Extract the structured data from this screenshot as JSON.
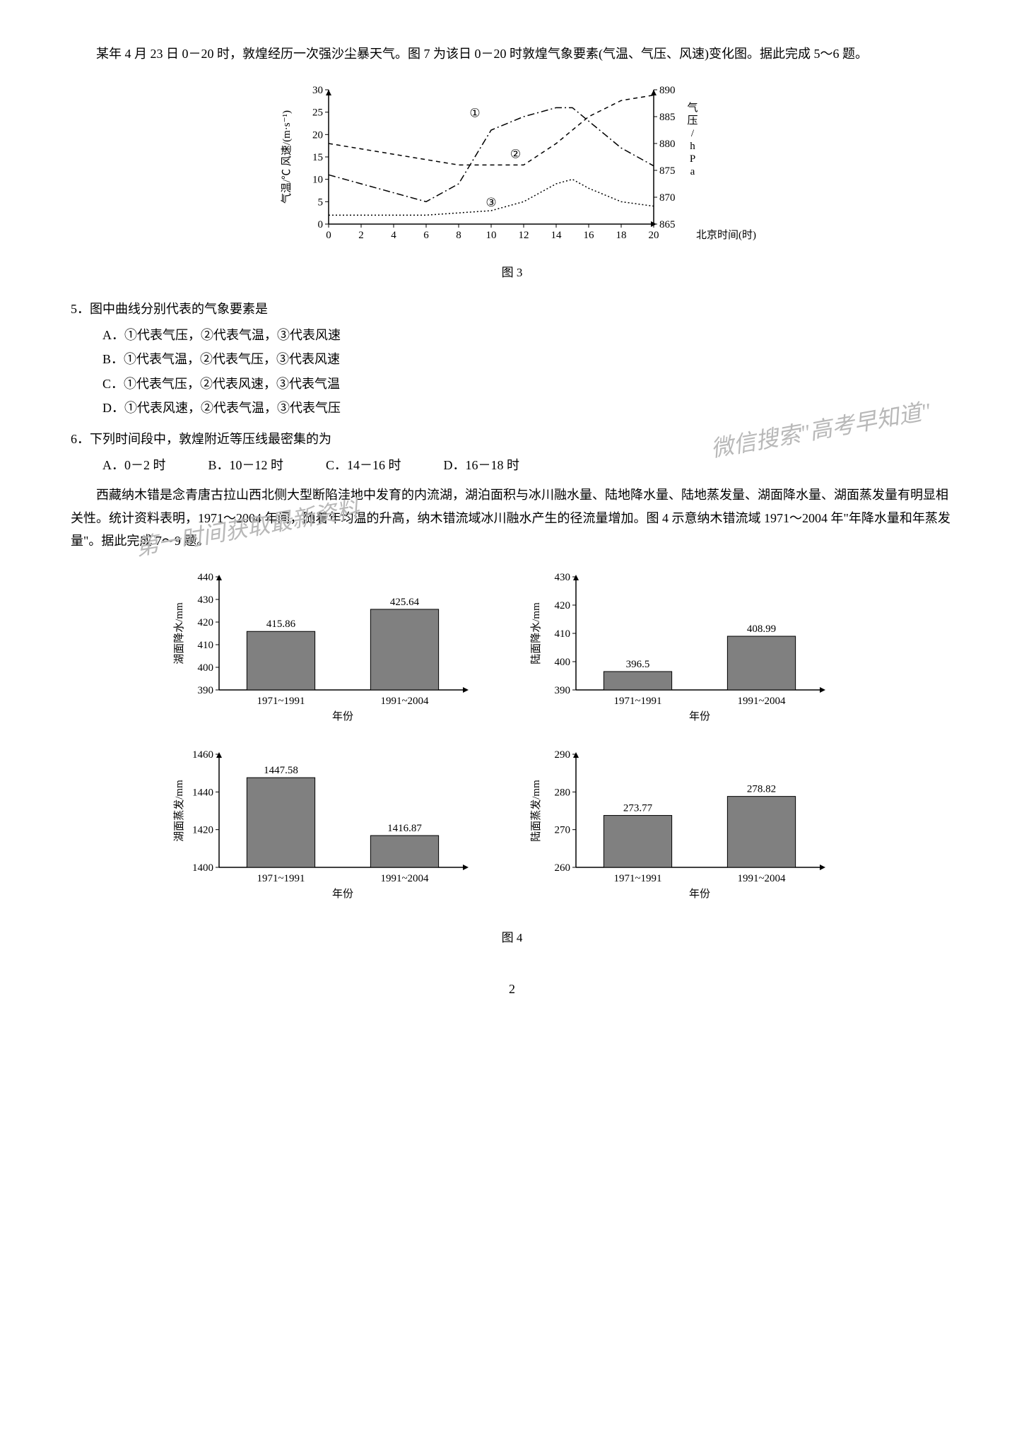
{
  "intro1": "某年 4 月 23 日 0－20 时，敦煌经历一次强沙尘暴天气。图 7 为该日 0－20 时敦煌气象要素(气温、气压、风速)变化图。据此完成 5～6 题。",
  "chart3": {
    "caption": "图 3",
    "left_axis_label": "气温/℃  风速/(m·s⁻¹)",
    "right_axis_label": "气压/hPa",
    "x_axis_label": "北京时间(时)",
    "x_ticks": [
      0,
      2,
      4,
      6,
      8,
      10,
      12,
      14,
      16,
      18,
      20
    ],
    "left_ticks": [
      0,
      5,
      10,
      15,
      20,
      25,
      30
    ],
    "right_ticks": [
      865,
      870,
      875,
      880,
      885,
      890
    ],
    "marker_labels": [
      "①",
      "②",
      "③"
    ],
    "series": {
      "line1": {
        "style": "dash-dot",
        "color": "#000000",
        "points": [
          [
            0,
            11
          ],
          [
            2,
            9
          ],
          [
            4,
            7
          ],
          [
            6,
            5
          ],
          [
            8,
            9
          ],
          [
            10,
            21
          ],
          [
            12,
            24
          ],
          [
            14,
            26
          ],
          [
            15,
            26
          ],
          [
            16,
            23
          ],
          [
            17,
            20
          ],
          [
            18,
            17
          ],
          [
            20,
            13
          ]
        ]
      },
      "line2": {
        "style": "dashed",
        "color": "#000000",
        "right_axis": true,
        "points": [
          [
            0,
            880
          ],
          [
            2,
            879
          ],
          [
            4,
            878
          ],
          [
            6,
            877
          ],
          [
            8,
            876
          ],
          [
            10,
            876
          ],
          [
            12,
            876
          ],
          [
            14,
            880
          ],
          [
            16,
            885
          ],
          [
            18,
            888
          ],
          [
            20,
            889
          ]
        ]
      },
      "line3": {
        "style": "dotted",
        "color": "#000000",
        "points": [
          [
            0,
            2
          ],
          [
            2,
            2
          ],
          [
            4,
            2
          ],
          [
            6,
            2
          ],
          [
            8,
            2.5
          ],
          [
            10,
            3
          ],
          [
            12,
            5
          ],
          [
            14,
            9
          ],
          [
            15,
            10
          ],
          [
            16,
            8
          ],
          [
            18,
            5
          ],
          [
            20,
            4
          ]
        ]
      }
    },
    "plot_bg": "#ffffff",
    "axis_color": "#000000"
  },
  "q5": {
    "stem": "5．图中曲线分别代表的气象要素是",
    "A": "A．①代表气压，②代表气温，③代表风速",
    "B": "B．①代表气温，②代表气压，③代表风速",
    "C": "C．①代表气压，②代表风速，③代表气温",
    "D": "D．①代表风速，②代表气温，③代表气压"
  },
  "q6": {
    "stem": "6．下列时间段中，敦煌附近等压线最密集的为",
    "A": "A．0－2 时",
    "B": "B．10－12 时",
    "C": "C．14－16 时",
    "D": "D．16－18 时"
  },
  "intro2a": "西藏纳木错是念青唐古拉山西北侧大型断陷洼地中发育的内流湖，湖泊面积与冰川融水量、陆地降水量、陆地蒸发量、湖面降水量、湖面蒸发量有明显相关性。统计资料表明，1971～2004 年间，随着年均温的升高，纳木错流域冰川融水产生的径流量增加。图 4 示意纳木错流域 1971～2004 年\"年降水量和年蒸发量\"。据此完成 7～9 题。",
  "chart4": {
    "caption": "图 4",
    "x_categories": [
      "1971~1991",
      "1991~2004"
    ],
    "x_label": "年份",
    "bar_color": "#808080",
    "bar_border": "#000000",
    "bg_color": "#ffffff",
    "panels": [
      {
        "ylabel": "湖面降水/mm",
        "ymin": 390,
        "ymax": 440,
        "ystep": 10,
        "values": [
          415.86,
          425.64
        ],
        "value_labels": [
          "415.86",
          "425.64"
        ]
      },
      {
        "ylabel": "陆面降水/mm",
        "ymin": 390,
        "ymax": 430,
        "ystep": 10,
        "values": [
          396.5,
          408.99
        ],
        "value_labels": [
          "396.5",
          "408.99"
        ]
      },
      {
        "ylabel": "湖面蒸发/mm",
        "ymin": 1400,
        "ymax": 1460,
        "ystep": 20,
        "values": [
          1447.58,
          1416.87
        ],
        "value_labels": [
          "1447.58",
          "1416.87"
        ]
      },
      {
        "ylabel": "陆面蒸发/mm",
        "ymin": 260,
        "ymax": 290,
        "ystep": 10,
        "values": [
          273.77,
          278.82
        ],
        "value_labels": [
          "273.77",
          "278.82"
        ]
      }
    ]
  },
  "watermarks": {
    "w1": "微信搜索\"高考早知道\"",
    "w2": "第一时间获取最新资料"
  },
  "page_number": "2"
}
